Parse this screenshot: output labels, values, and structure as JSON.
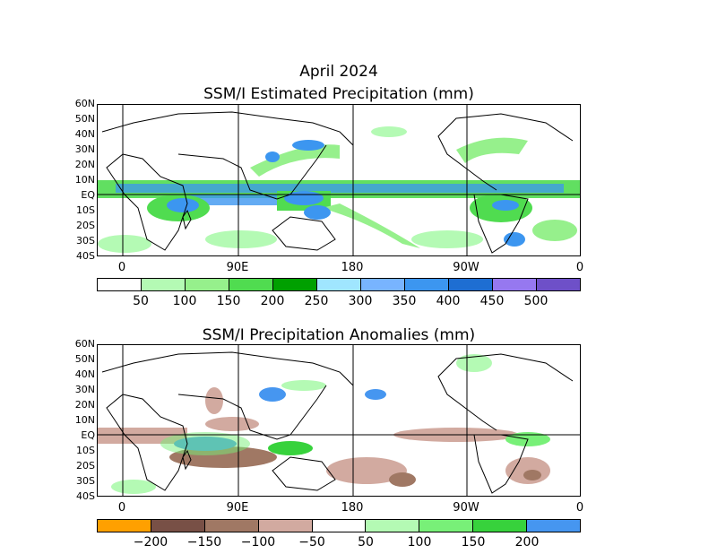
{
  "header": {
    "month": "April 2024"
  },
  "panel1": {
    "title": "SSM/I Estimated Precipitation (mm)",
    "lat_labels": [
      "60N",
      "50N",
      "40N",
      "30N",
      "20N",
      "10N",
      "EQ",
      "10S",
      "20S",
      "30S",
      "40S"
    ],
    "lon_labels": [
      "0",
      "90E",
      "180",
      "90W",
      "0"
    ],
    "colorbar": {
      "colors": [
        "#ffffff",
        "#b4fab4",
        "#96f08c",
        "#50dc50",
        "#00a000",
        "#a0e6ff",
        "#78b4ff",
        "#3c96f0",
        "#1e6ed2",
        "#9678f0",
        "#6e50c8"
      ],
      "labels": [
        "50",
        "100",
        "150",
        "200",
        "250",
        "300",
        "350",
        "400",
        "450",
        "500"
      ]
    }
  },
  "panel2": {
    "title": "SSM/I Precipitation Anomalies (mm)",
    "lat_labels": [
      "60N",
      "50N",
      "40N",
      "30N",
      "20N",
      "10N",
      "EQ",
      "10S",
      "20S",
      "30S",
      "40S"
    ],
    "lon_labels": [
      "0",
      "90E",
      "180",
      "90W",
      "0"
    ],
    "colorbar": {
      "colors": [
        "#ffa000",
        "#785046",
        "#a07864",
        "#d2aaa0",
        "#ffffff",
        "#b4fab4",
        "#78f078",
        "#37d23c",
        "#4696f0"
      ],
      "labels": [
        "-200",
        "-150",
        "-100",
        "-50",
        "50",
        "100",
        "150",
        "200"
      ]
    }
  }
}
